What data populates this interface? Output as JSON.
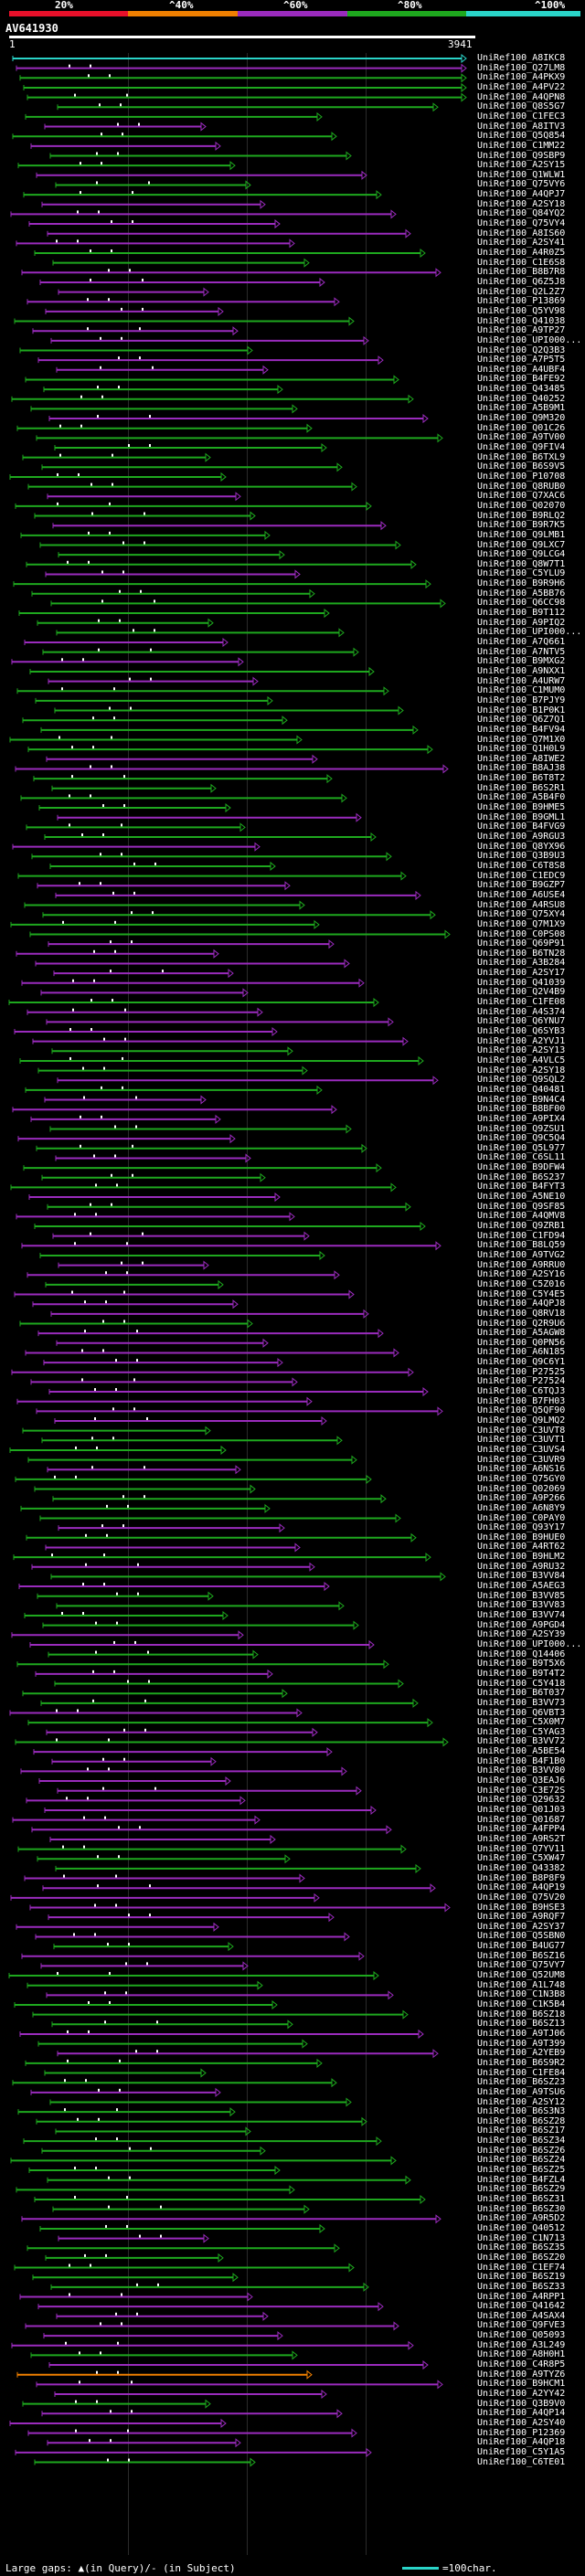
{
  "legend": {
    "labels": [
      "20%",
      "^40%",
      "^60%",
      "^80%",
      "^100%"
    ],
    "colors": [
      "#e8102a",
      "#f07f00",
      "#9a2bbd",
      "#1ea81e",
      "#2ad4c8"
    ]
  },
  "query": {
    "name": "AV641930",
    "start": "1",
    "end": "3941"
  },
  "footer": {
    "gap_text": "Large gaps: ▲(in Query)/- (in Subject)",
    "scale_text": "=100char."
  },
  "hits": [
    {
      "id": "UniRef100_A8IKC8",
      "c": "c"
    },
    {
      "id": "UniRef100_Q27LM8",
      "c": "m"
    },
    {
      "id": "UniRef100_A4PKX9",
      "c": "g"
    },
    {
      "id": "UniRef100_A4PV22",
      "c": "g"
    },
    {
      "id": "UniRef100_A4QPN8",
      "c": "g"
    },
    {
      "id": "UniRef100_Q8S5G7",
      "c": "g"
    },
    {
      "id": "UniRef100_C1FEC3",
      "c": "g"
    },
    {
      "id": "UniRef100_A8ITV3",
      "c": "m"
    },
    {
      "id": "UniRef100_Q5Q854",
      "c": "g"
    },
    {
      "id": "UniRef100_C1MM22",
      "c": "m"
    },
    {
      "id": "UniRef100_Q9SBP9",
      "c": "g"
    },
    {
      "id": "UniRef100_A2SY15",
      "c": "g"
    },
    {
      "id": "UniRef100_Q1WLW1",
      "c": "m"
    },
    {
      "id": "UniRef100_Q75VY6",
      "c": "g"
    },
    {
      "id": "UniRef100_A4QPJ7",
      "c": "g"
    },
    {
      "id": "UniRef100_A2SY18",
      "c": "m"
    },
    {
      "id": "UniRef100_Q84YQ2",
      "c": "m"
    },
    {
      "id": "UniRef100_Q75VY4",
      "c": "m"
    },
    {
      "id": "UniRef100_A8IS60",
      "c": "m"
    },
    {
      "id": "UniRef100_A2SY41",
      "c": "m"
    },
    {
      "id": "UniRef100_A4R0Z5",
      "c": "g"
    },
    {
      "id": "UniRef100_C1E6S8",
      "c": "g"
    },
    {
      "id": "UniRef100_B8B7R8",
      "c": "m"
    },
    {
      "id": "UniRef100_Q6Z5J8",
      "c": "m"
    },
    {
      "id": "UniRef100_Q2L2Z7",
      "c": "m"
    },
    {
      "id": "UniRef100_P13869",
      "c": "m"
    },
    {
      "id": "UniRef100_Q5YV98",
      "c": "m"
    },
    {
      "id": "UniRef100_Q41038",
      "c": "g"
    },
    {
      "id": "UniRef100_A9TP27",
      "c": "m"
    },
    {
      "id": "UniRef100_UPI000...",
      "c": "m"
    },
    {
      "id": "UniRef100_Q2Q3B3",
      "c": "g"
    },
    {
      "id": "UniRef100_A7P5T5",
      "c": "m"
    },
    {
      "id": "UniRef100_A4UBF4",
      "c": "m"
    },
    {
      "id": "UniRef100_B4FE92",
      "c": "g"
    },
    {
      "id": "UniRef100_Q43485",
      "c": "g"
    },
    {
      "id": "UniRef100_Q40252",
      "c": "g"
    },
    {
      "id": "UniRef100_A5B9M1",
      "c": "g"
    },
    {
      "id": "UniRef100_Q9M320",
      "c": "m"
    },
    {
      "id": "UniRef100_Q01C26",
      "c": "g"
    },
    {
      "id": "UniRef100_A9TV00",
      "c": "g"
    },
    {
      "id": "UniRef100_Q9FIV4",
      "c": "g"
    },
    {
      "id": "UniRef100_B6TXL9",
      "c": "g"
    },
    {
      "id": "UniRef100_B6S9V5",
      "c": "g"
    },
    {
      "id": "UniRef100_P10708",
      "c": "g"
    },
    {
      "id": "UniRef100_Q8RUB0",
      "c": "g"
    },
    {
      "id": "UniRef100_Q7XAC6",
      "c": "m"
    },
    {
      "id": "UniRef100_Q02070",
      "c": "g"
    },
    {
      "id": "UniRef100_B9RLQ2",
      "c": "g"
    },
    {
      "id": "UniRef100_B9R7K5",
      "c": "m"
    },
    {
      "id": "UniRef100_Q9LMB1",
      "c": "g"
    },
    {
      "id": "UniRef100_Q9LXC7",
      "c": "g"
    },
    {
      "id": "UniRef100_Q9LCG4",
      "c": "g"
    },
    {
      "id": "UniRef100_Q8W7T1",
      "c": "g"
    },
    {
      "id": "UniRef100_C5YLU9",
      "c": "m"
    },
    {
      "id": "UniRef100_B9R9H6",
      "c": "g"
    },
    {
      "id": "UniRef100_A5BB76",
      "c": "g"
    },
    {
      "id": "UniRef100_Q6CC98",
      "c": "g"
    },
    {
      "id": "UniRef100_B9T112",
      "c": "g"
    },
    {
      "id": "UniRef100_A9PIQ2",
      "c": "g"
    },
    {
      "id": "UniRef100_UPI000...",
      "c": "g"
    },
    {
      "id": "UniRef100_A7Q661",
      "c": "m"
    },
    {
      "id": "UniRef100_A7NTV5",
      "c": "g"
    },
    {
      "id": "UniRef100_B9MXG2",
      "c": "m"
    },
    {
      "id": "UniRef100_A9NXX1",
      "c": "g"
    },
    {
      "id": "UniRef100_A4URW7",
      "c": "m"
    },
    {
      "id": "UniRef100_C1MUM0",
      "c": "g"
    },
    {
      "id": "UniRef100_B7PJY9",
      "c": "g"
    },
    {
      "id": "UniRef100_B1P0K1",
      "c": "g"
    },
    {
      "id": "UniRef100_Q6Z7Q1",
      "c": "g"
    },
    {
      "id": "UniRef100_B4FV94",
      "c": "g"
    },
    {
      "id": "UniRef100_Q7M1X0",
      "c": "g"
    },
    {
      "id": "UniRef100_Q1H0L9",
      "c": "g"
    },
    {
      "id": "UniRef100_A8IWE2",
      "c": "m"
    },
    {
      "id": "UniRef100_B8AJ38",
      "c": "m"
    },
    {
      "id": "UniRef100_B6T8T2",
      "c": "g"
    },
    {
      "id": "UniRef100_B6S2R1",
      "c": "g"
    },
    {
      "id": "UniRef100_A5B4F0",
      "c": "g"
    },
    {
      "id": "UniRef100_B9HME5",
      "c": "g"
    },
    {
      "id": "UniRef100_B9GML1",
      "c": "m"
    },
    {
      "id": "UniRef100_B4FVG9",
      "c": "g"
    },
    {
      "id": "UniRef100_A9RGU3",
      "c": "g"
    },
    {
      "id": "UniRef100_Q8YX96",
      "c": "m"
    },
    {
      "id": "UniRef100_Q3B9U3",
      "c": "g"
    },
    {
      "id": "UniRef100_C6T8S8",
      "c": "g"
    },
    {
      "id": "UniRef100_C1EDC9",
      "c": "g"
    },
    {
      "id": "UniRef100_B9GZP7",
      "c": "m"
    },
    {
      "id": "UniRef100_A6USE4",
      "c": "m"
    },
    {
      "id": "UniRef100_A4RSU8",
      "c": "g"
    },
    {
      "id": "UniRef100_Q75XY4",
      "c": "g"
    },
    {
      "id": "UniRef100_Q7M1X9",
      "c": "g"
    },
    {
      "id": "UniRef100_C0PS08",
      "c": "g"
    },
    {
      "id": "UniRef100_Q69P91",
      "c": "m"
    },
    {
      "id": "UniRef100_B6TN28",
      "c": "m"
    },
    {
      "id": "UniRef100_A3B284",
      "c": "m"
    },
    {
      "id": "UniRef100_A2SY17",
      "c": "m"
    },
    {
      "id": "UniRef100_Q41039",
      "c": "m"
    },
    {
      "id": "UniRef100_Q2V4B9",
      "c": "m"
    },
    {
      "id": "UniRef100_C1FE08",
      "c": "g"
    },
    {
      "id": "UniRef100_A4S374",
      "c": "m"
    },
    {
      "id": "UniRef100_Q6YNU7",
      "c": "m"
    },
    {
      "id": "UniRef100_Q6SYB3",
      "c": "m"
    },
    {
      "id": "UniRef100_A2YVJ1",
      "c": "m"
    },
    {
      "id": "UniRef100_A2SY13",
      "c": "g"
    },
    {
      "id": "UniRef100_A4VLC5",
      "c": "g"
    },
    {
      "id": "UniRef100_A2SY18",
      "c": "g"
    },
    {
      "id": "UniRef100_Q9SQL2",
      "c": "m"
    },
    {
      "id": "UniRef100_Q40481",
      "c": "g"
    },
    {
      "id": "UniRef100_B9N4C4",
      "c": "m"
    },
    {
      "id": "UniRef100_B8BF00",
      "c": "m"
    },
    {
      "id": "UniRef100_A9PIX4",
      "c": "m"
    },
    {
      "id": "UniRef100_Q9ZSU1",
      "c": "g"
    },
    {
      "id": "UniRef100_Q9C5Q4",
      "c": "m"
    },
    {
      "id": "UniRef100_Q5L977",
      "c": "g"
    },
    {
      "id": "UniRef100_C6SL11",
      "c": "m"
    },
    {
      "id": "UniRef100_B9DFW4",
      "c": "g"
    },
    {
      "id": "UniRef100_B6S237",
      "c": "g"
    },
    {
      "id": "UniRef100_B4FYT3",
      "c": "g"
    },
    {
      "id": "UniRef100_A5NE10",
      "c": "m"
    },
    {
      "id": "UniRef100_Q9SF85",
      "c": "g"
    },
    {
      "id": "UniRef100_A4QMV8",
      "c": "m"
    },
    {
      "id": "UniRef100_Q9ZRB1",
      "c": "g"
    },
    {
      "id": "UniRef100_C1FD94",
      "c": "m"
    },
    {
      "id": "UniRef100_B8LQ59",
      "c": "m"
    },
    {
      "id": "UniRef100_A9TVG2",
      "c": "g"
    },
    {
      "id": "UniRef100_A9RRU0",
      "c": "m"
    },
    {
      "id": "UniRef100_A2SY16",
      "c": "m"
    },
    {
      "id": "UniRef100_C5Z016",
      "c": "g"
    },
    {
      "id": "UniRef100_C5Y4E5",
      "c": "m"
    },
    {
      "id": "UniRef100_A4QPJ8",
      "c": "m"
    },
    {
      "id": "UniRef100_Q8RV18",
      "c": "m"
    },
    {
      "id": "UniRef100_Q2R9U6",
      "c": "g"
    },
    {
      "id": "UniRef100_A5AGW8",
      "c": "m"
    },
    {
      "id": "UniRef100_Q0PN56",
      "c": "m"
    },
    {
      "id": "UniRef100_A6N185",
      "c": "m"
    },
    {
      "id": "UniRef100_Q9C6Y1",
      "c": "m"
    },
    {
      "id": "UniRef100_P27525",
      "c": "m"
    },
    {
      "id": "UniRef100_P27524",
      "c": "m"
    },
    {
      "id": "UniRef100_C6TQJ3",
      "c": "m"
    },
    {
      "id": "UniRef100_B7FH03",
      "c": "m"
    },
    {
      "id": "UniRef100_Q5QF90",
      "c": "m"
    },
    {
      "id": "UniRef100_Q9LMQ2",
      "c": "m"
    },
    {
      "id": "UniRef100_C3UVT8",
      "c": "g"
    },
    {
      "id": "UniRef100_C3UVT1",
      "c": "g"
    },
    {
      "id": "UniRef100_C3UVS4",
      "c": "g"
    },
    {
      "id": "UniRef100_C3UVR9",
      "c": "g"
    },
    {
      "id": "UniRef100_A6NS16",
      "c": "m"
    },
    {
      "id": "UniRef100_Q75GY0",
      "c": "g"
    },
    {
      "id": "UniRef100_Q02069",
      "c": "g"
    },
    {
      "id": "UniRef100_A9P266",
      "c": "g"
    },
    {
      "id": "UniRef100_A6N8Y9",
      "c": "g"
    },
    {
      "id": "UniRef100_C0PAY0",
      "c": "g"
    },
    {
      "id": "UniRef100_Q93Y17",
      "c": "m"
    },
    {
      "id": "UniRef100_B9HUE0",
      "c": "g"
    },
    {
      "id": "UniRef100_A4RT62",
      "c": "m"
    },
    {
      "id": "UniRef100_B9HLM2",
      "c": "g"
    },
    {
      "id": "UniRef100_A9RU32",
      "c": "m"
    },
    {
      "id": "UniRef100_B3VV84",
      "c": "g"
    },
    {
      "id": "UniRef100_A5AEG3",
      "c": "m"
    },
    {
      "id": "UniRef100_B3VV85",
      "c": "g"
    },
    {
      "id": "UniRef100_B3VV83",
      "c": "g"
    },
    {
      "id": "UniRef100_B3VV74",
      "c": "g"
    },
    {
      "id": "UniRef100_A9PGD4",
      "c": "g"
    },
    {
      "id": "UniRef100_A2SY39",
      "c": "m"
    },
    {
      "id": "UniRef100_UPI000...",
      "c": "m"
    },
    {
      "id": "UniRef100_Q14406",
      "c": "g"
    },
    {
      "id": "UniRef100_B9T5X6",
      "c": "g"
    },
    {
      "id": "UniRef100_B9T4T2",
      "c": "m"
    },
    {
      "id": "UniRef100_C5Y418",
      "c": "g"
    },
    {
      "id": "UniRef100_B6T037",
      "c": "g"
    },
    {
      "id": "UniRef100_B3VV73",
      "c": "g"
    },
    {
      "id": "UniRef100_Q6VBT3",
      "c": "m"
    },
    {
      "id": "UniRef100_C5X0M7",
      "c": "g"
    },
    {
      "id": "UniRef100_C5YAG3",
      "c": "m"
    },
    {
      "id": "UniRef100_B3VV72",
      "c": "g"
    },
    {
      "id": "UniRef100_A5BE54",
      "c": "m"
    },
    {
      "id": "UniRef100_B4F1B0",
      "c": "m"
    },
    {
      "id": "UniRef100_B3VV80",
      "c": "m"
    },
    {
      "id": "UniRef100_Q3EAJ6",
      "c": "m"
    },
    {
      "id": "UniRef100_C3E72S",
      "c": "m"
    },
    {
      "id": "UniRef100_Q29632",
      "c": "m"
    },
    {
      "id": "UniRef100_Q01J03",
      "c": "m"
    },
    {
      "id": "UniRef100_Q01687",
      "c": "m"
    },
    {
      "id": "UniRef100_A4FPP4",
      "c": "m"
    },
    {
      "id": "UniRef100_A9RS2T",
      "c": "m"
    },
    {
      "id": "UniRef100_Q7YV11",
      "c": "g"
    },
    {
      "id": "UniRef100_C5XW47",
      "c": "g"
    },
    {
      "id": "UniRef100_Q43382",
      "c": "g"
    },
    {
      "id": "UniRef100_B8P8F9",
      "c": "m"
    },
    {
      "id": "UniRef100_A4QP19",
      "c": "m"
    },
    {
      "id": "UniRef100_Q75V20",
      "c": "m"
    },
    {
      "id": "UniRef100_B9HSE3",
      "c": "m"
    },
    {
      "id": "UniRef100_A9RQF7",
      "c": "m"
    },
    {
      "id": "UniRef100_A2SY37",
      "c": "m"
    },
    {
      "id": "UniRef100_Q5SBN0",
      "c": "m"
    },
    {
      "id": "UniRef100_B4UG77",
      "c": "g"
    },
    {
      "id": "UniRef100_B6SZ16",
      "c": "m"
    },
    {
      "id": "UniRef100_Q75VY7",
      "c": "m"
    },
    {
      "id": "UniRef100_Q52UM8",
      "c": "g"
    },
    {
      "id": "UniRef100_A1L748",
      "c": "g"
    },
    {
      "id": "UniRef100_C1N3B8",
      "c": "m"
    },
    {
      "id": "UniRef100_C1K5B4",
      "c": "g"
    },
    {
      "id": "UniRef100_B6SZ18",
      "c": "g"
    },
    {
      "id": "UniRef100_B6SZ13",
      "c": "g"
    },
    {
      "id": "UniRef100_A9TJ06",
      "c": "m"
    },
    {
      "id": "UniRef100_A9T399",
      "c": "g"
    },
    {
      "id": "UniRef100_A2YEB9",
      "c": "m"
    },
    {
      "id": "UniRef100_B6S9R2",
      "c": "g"
    },
    {
      "id": "UniRef100_C1FE84",
      "c": "g"
    },
    {
      "id": "UniRef100_B6SZ23",
      "c": "g"
    },
    {
      "id": "UniRef100_A9TSU6",
      "c": "m"
    },
    {
      "id": "UniRef100_A2SY12",
      "c": "g"
    },
    {
      "id": "UniRef100_B6S3N3",
      "c": "g"
    },
    {
      "id": "UniRef100_B6SZ28",
      "c": "g"
    },
    {
      "id": "UniRef100_B6SZ17",
      "c": "g"
    },
    {
      "id": "UniRef100_B6SZ34",
      "c": "g"
    },
    {
      "id": "UniRef100_B6SZ26",
      "c": "g"
    },
    {
      "id": "UniRef100_B6SZ24",
      "c": "g"
    },
    {
      "id": "UniRef100_B6SZ25",
      "c": "g"
    },
    {
      "id": "UniRef100_B4FZL4",
      "c": "g"
    },
    {
      "id": "UniRef100_B6SZ29",
      "c": "g"
    },
    {
      "id": "UniRef100_B6SZ31",
      "c": "g"
    },
    {
      "id": "UniRef100_B6SZ30",
      "c": "g"
    },
    {
      "id": "UniRef100_A9R5D2",
      "c": "m"
    },
    {
      "id": "UniRef100_Q40512",
      "c": "g"
    },
    {
      "id": "UniRef100_C1N713",
      "c": "m"
    },
    {
      "id": "UniRef100_B6SZ35",
      "c": "g"
    },
    {
      "id": "UniRef100_B6SZ20",
      "c": "g"
    },
    {
      "id": "UniRef100_C1EF74",
      "c": "g"
    },
    {
      "id": "UniRef100_B6SZ19",
      "c": "g"
    },
    {
      "id": "UniRef100_B6SZ33",
      "c": "g"
    },
    {
      "id": "UniRef100_A4RPP1",
      "c": "m"
    },
    {
      "id": "UniRef100_Q41642",
      "c": "m"
    },
    {
      "id": "UniRef100_A4SAX4",
      "c": "m"
    },
    {
      "id": "UniRef100_Q9FVE3",
      "c": "m"
    },
    {
      "id": "UniRef100_Q05093",
      "c": "m"
    },
    {
      "id": "UniRef100_A3L249",
      "c": "m"
    },
    {
      "id": "UniRef100_A8H0H1",
      "c": "g"
    },
    {
      "id": "UniRef100_C4R8P5",
      "c": "m"
    },
    {
      "id": "UniRef100_A9TYZ6",
      "c": "o"
    },
    {
      "id": "UniRef100_B9HCM1",
      "c": "m"
    },
    {
      "id": "UniRef100_A2YY42",
      "c": "m"
    },
    {
      "id": "UniRef100_Q3B9V0",
      "c": "g"
    },
    {
      "id": "UniRef100_A4QP14",
      "c": "m"
    },
    {
      "id": "UniRef100_A2SY40",
      "c": "m"
    },
    {
      "id": "UniRef100_P12369",
      "c": "m"
    },
    {
      "id": "UniRef100_A4QP18",
      "c": "m"
    },
    {
      "id": "UniRef100_C5Y1A5",
      "c": "m"
    },
    {
      "id": "UniRef100_C6TE01",
      "c": "g"
    }
  ]
}
